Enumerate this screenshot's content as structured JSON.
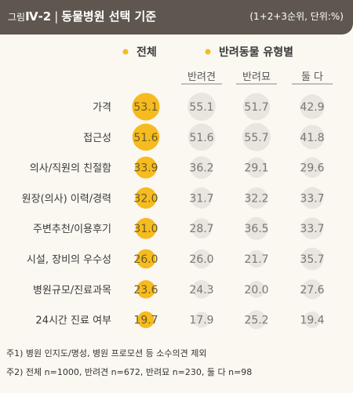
{
  "figure": {
    "prefix": "그림",
    "number": "Ⅳ-2",
    "separator": "|",
    "title": "동물병원 선택 기준",
    "note": "(1+2+3순위, 단위:%)"
  },
  "footnotes": [
    "주1) 병원 인지도/명성, 병원 프로모션 등 소수의견 제외",
    "주2) 전체 n=1000, 반려견 n=672, 반려묘 n=230, 둘 다 n=98"
  ],
  "colors": {
    "header_bg": "#5f574f",
    "total_circle": "#f5bb1f",
    "sub_circle": "#e9e5df",
    "legend_dot": "#f5bb1f"
  },
  "chart_data": {
    "type": "table",
    "legend": [
      "전체",
      "반려동물 유형별"
    ],
    "columns": [
      "전체",
      "반려견",
      "반려묘",
      "둘 다"
    ],
    "sub_headers": [
      "반려견",
      "반려묘",
      "둘 다"
    ],
    "categories": [
      "가격",
      "접근성",
      "의사/직원의 친절함",
      "원장(의사) 이력/경력",
      "주변추천/이용후기",
      "시설, 장비의 우수성",
      "병원규모/진료과목",
      "24시간 진료 여부"
    ],
    "series": [
      {
        "name": "전체",
        "values": [
          53.1,
          51.6,
          33.9,
          32.0,
          31.0,
          26.0,
          23.6,
          19.7
        ],
        "labels": [
          "53.1",
          "51.6",
          "33.9",
          "32.0",
          "31.0",
          "26.0",
          "23.6",
          "19.7"
        ]
      },
      {
        "name": "반려견",
        "values": [
          55.1,
          51.6,
          36.2,
          31.7,
          28.7,
          26.0,
          24.3,
          17.9
        ],
        "labels": [
          "55.1",
          "51.6",
          "36.2",
          "31.7",
          "28.7",
          "26.0",
          "24.3",
          "17.9"
        ]
      },
      {
        "name": "반려묘",
        "values": [
          51.7,
          55.7,
          29.1,
          32.2,
          36.5,
          21.7,
          20.0,
          25.2
        ],
        "labels": [
          "51.7",
          "55.7",
          "29.1",
          "32.2",
          "36.5",
          "21.7",
          "20.0",
          "25.2"
        ]
      },
      {
        "name": "둘 다",
        "values": [
          42.9,
          41.8,
          29.6,
          33.7,
          33.7,
          35.7,
          27.6,
          19.4
        ],
        "labels": [
          "42.9",
          "41.8",
          "29.6",
          "33.7",
          "33.7",
          "35.7",
          "27.6",
          "19.4"
        ]
      }
    ]
  }
}
